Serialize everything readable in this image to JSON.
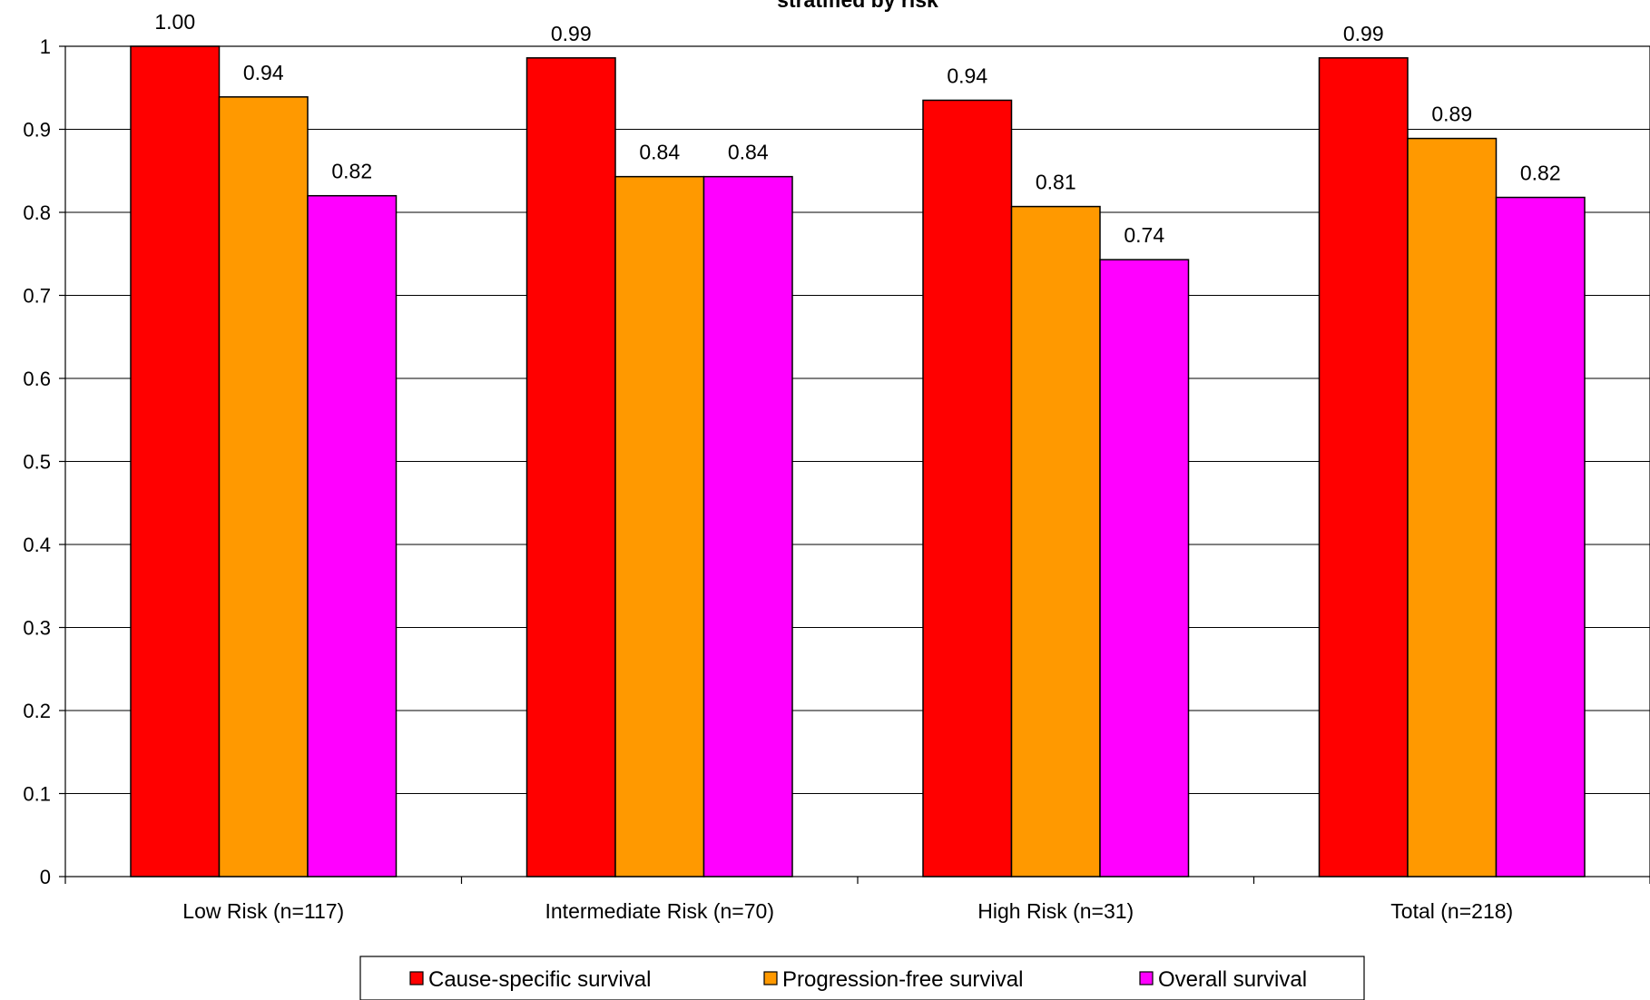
{
  "chart_data": {
    "type": "bar",
    "title": "stratified by risk",
    "xlabel": "",
    "ylabel": "",
    "ylim": [
      0,
      1
    ],
    "yticks": [
      "0",
      "0.1",
      "0.2",
      "0.3",
      "0.4",
      "0.5",
      "0.6",
      "0.7",
      "0.8",
      "0.9",
      "1"
    ],
    "grid": true,
    "legend_position": "bottom",
    "categories": [
      "Low Risk (n=117)",
      "Intermediate Risk (n=70)",
      "High Risk (n=31)",
      "Total (n=218)"
    ],
    "series": [
      {
        "name": "Cause-specific survival",
        "color": "#ff0000",
        "values": [
          1.0,
          0.986,
          0.935,
          0.986
        ],
        "labels": [
          "1.00",
          "0.99",
          "0.94",
          "0.99"
        ]
      },
      {
        "name": "Progression-free survival",
        "color": "#ff9900",
        "values": [
          0.939,
          0.843,
          0.807,
          0.889
        ],
        "labels": [
          "0.94",
          "0.84",
          "0.81",
          "0.89"
        ]
      },
      {
        "name": "Overall survival",
        "color": "#ff00ff",
        "values": [
          0.82,
          0.843,
          0.743,
          0.818
        ],
        "labels": [
          "0.82",
          "0.84",
          "0.74",
          "0.82"
        ]
      }
    ]
  }
}
